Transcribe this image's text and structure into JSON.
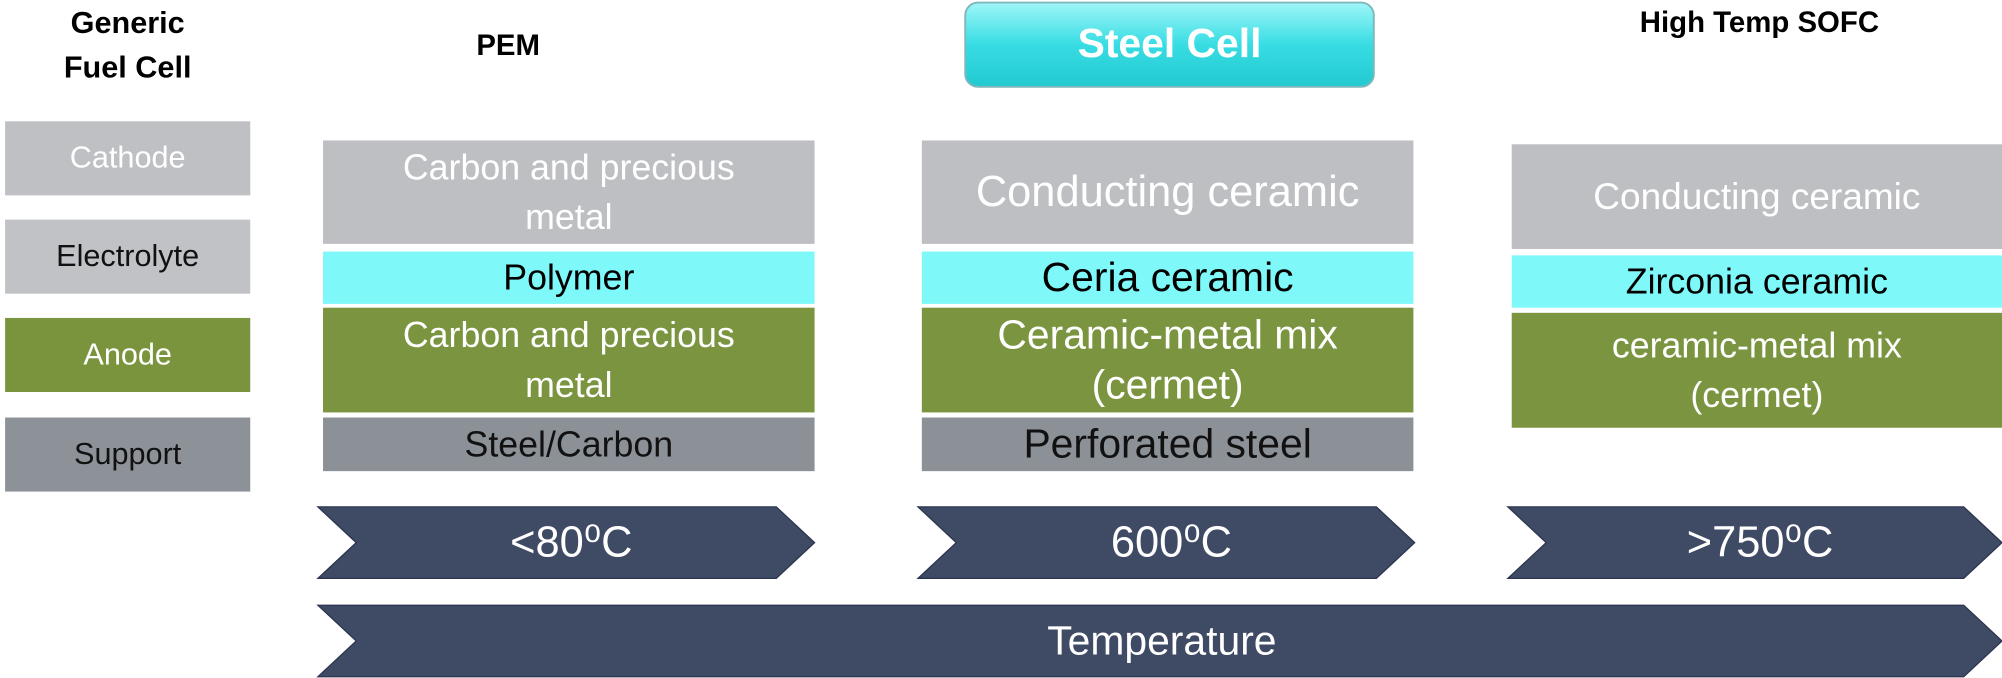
{
  "legend": {
    "title": [
      "Generic",
      "Fuel Cell"
    ],
    "items": [
      "Cathode",
      "Electrolyte",
      "Anode",
      "Support"
    ]
  },
  "columns": [
    {
      "title": "PEM",
      "layers": [
        [
          "Carbon and precious",
          "metal"
        ],
        [
          "Polymer"
        ],
        [
          "Carbon and precious",
          "metal"
        ],
        [
          "Steel/Carbon"
        ]
      ],
      "temperature": "<80⁰C"
    },
    {
      "title": "Steel Cell",
      "layers": [
        [
          "Conducting ceramic"
        ],
        [
          "Ceria ceramic"
        ],
        [
          "Ceramic-metal mix",
          "(cermet)"
        ],
        [
          "Perforated steel"
        ]
      ],
      "temperature": "600⁰C"
    },
    {
      "title": "High Temp SOFC",
      "layers": [
        [
          "Conducting ceramic"
        ],
        [
          "Zirconia ceramic"
        ],
        [
          "ceramic-metal mix",
          "(cermet)"
        ]
      ],
      "temperature": ">750⁰C"
    }
  ],
  "footer": "Temperature"
}
